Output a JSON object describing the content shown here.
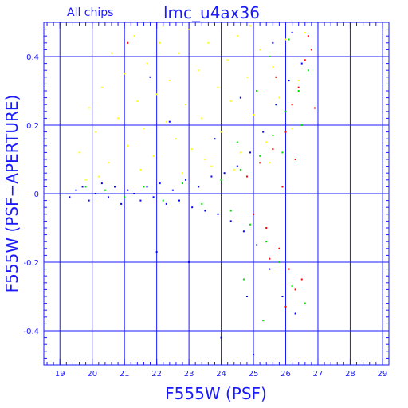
{
  "chart_data": {
    "type": "scatter",
    "title": "lmc_u4ax36",
    "subtitle": "All chips",
    "xlabel": "F555W (PSF)",
    "ylabel": "F555W (PSF−APERTURE)",
    "xlim": [
      18.5,
      29.2
    ],
    "ylim": [
      -0.5,
      0.5
    ],
    "xticks": [
      19,
      20,
      21,
      22,
      23,
      24,
      25,
      26,
      27,
      28,
      29
    ],
    "yticks": [
      -0.4,
      -0.2,
      0,
      0.2,
      0.4
    ],
    "xtick_labels": [
      "19",
      "20",
      "21",
      "22",
      "23",
      "24",
      "25",
      "26",
      "27",
      "28",
      "29"
    ],
    "ytick_labels": [
      "-0.4",
      "-0.2",
      "0",
      "0.2",
      "0.4"
    ],
    "grid": true,
    "series": [
      {
        "color": "#ffff00",
        "points": [
          [
            19.6,
            0.12
          ],
          [
            19.9,
            0.25
          ],
          [
            20.1,
            0.18
          ],
          [
            20.3,
            0.31
          ],
          [
            20.5,
            0.09
          ],
          [
            20.6,
            0.41
          ],
          [
            20.8,
            0.22
          ],
          [
            21.0,
            0.35
          ],
          [
            21.1,
            0.14
          ],
          [
            21.3,
            0.46
          ],
          [
            21.4,
            0.27
          ],
          [
            21.6,
            0.19
          ],
          [
            21.7,
            0.38
          ],
          [
            21.9,
            0.11
          ],
          [
            22.0,
            0.29
          ],
          [
            22.1,
            0.44
          ],
          [
            22.3,
            0.21
          ],
          [
            22.4,
            0.33
          ],
          [
            22.6,
            0.16
          ],
          [
            22.7,
            0.41
          ],
          [
            22.9,
            0.26
          ],
          [
            23.0,
            0.48
          ],
          [
            23.1,
            0.13
          ],
          [
            23.3,
            0.36
          ],
          [
            23.4,
            0.22
          ],
          [
            23.6,
            0.44
          ],
          [
            23.7,
            0.08
          ],
          [
            23.9,
            0.31
          ],
          [
            24.0,
            0.18
          ],
          [
            24.2,
            0.39
          ],
          [
            24.3,
            0.27
          ],
          [
            24.5,
            0.46
          ],
          [
            24.6,
            0.12
          ],
          [
            24.8,
            0.34
          ],
          [
            25.0,
            0.23
          ],
          [
            25.2,
            0.42
          ],
          [
            25.4,
            0.15
          ],
          [
            25.6,
            0.37
          ],
          [
            25.8,
            0.28
          ],
          [
            26.0,
            0.45
          ],
          [
            26.2,
            0.19
          ],
          [
            26.4,
            0.33
          ],
          [
            20.2,
            0.05
          ],
          [
            21.5,
            0.07
          ],
          [
            22.8,
            0.06
          ],
          [
            23.5,
            0.1
          ],
          [
            24.4,
            0.07
          ],
          [
            25.5,
            0.09
          ],
          [
            19.8,
            0.04
          ],
          [
            22.2,
            0.49
          ],
          [
            24.9,
            0.49
          ],
          [
            26.6,
            0.47
          ]
        ]
      },
      {
        "color": "#0000ff",
        "points": [
          [
            19.3,
            -0.01
          ],
          [
            19.5,
            0.01
          ],
          [
            19.7,
            0.02
          ],
          [
            19.9,
            -0.02
          ],
          [
            20.1,
            0.0
          ],
          [
            20.3,
            0.03
          ],
          [
            20.5,
            -0.01
          ],
          [
            20.7,
            0.02
          ],
          [
            20.9,
            -0.03
          ],
          [
            21.1,
            0.01
          ],
          [
            21.3,
            0.0
          ],
          [
            21.5,
            -0.02
          ],
          [
            21.7,
            0.02
          ],
          [
            21.9,
            -0.01
          ],
          [
            22.1,
            0.03
          ],
          [
            22.3,
            -0.03
          ],
          [
            22.5,
            0.01
          ],
          [
            22.7,
            -0.02
          ],
          [
            22.9,
            0.04
          ],
          [
            23.1,
            -0.04
          ],
          [
            23.3,
            0.02
          ],
          [
            23.5,
            -0.05
          ],
          [
            23.7,
            0.05
          ],
          [
            23.9,
            -0.06
          ],
          [
            24.1,
            0.06
          ],
          [
            24.3,
            -0.08
          ],
          [
            24.5,
            0.08
          ],
          [
            24.7,
            -0.11
          ],
          [
            24.9,
            0.12
          ],
          [
            25.1,
            -0.15
          ],
          [
            25.3,
            0.18
          ],
          [
            25.5,
            -0.22
          ],
          [
            25.7,
            0.26
          ],
          [
            25.9,
            -0.3
          ],
          [
            26.1,
            0.33
          ],
          [
            26.3,
            -0.35
          ],
          [
            26.5,
            0.38
          ],
          [
            24.0,
            -0.42
          ],
          [
            25.0,
            -0.47
          ],
          [
            25.6,
            0.44
          ],
          [
            26.2,
            0.47
          ],
          [
            22.4,
            0.21
          ],
          [
            21.8,
            0.34
          ],
          [
            23.8,
            0.16
          ],
          [
            24.6,
            0.28
          ],
          [
            23.0,
            -0.2
          ],
          [
            22.0,
            -0.17
          ],
          [
            24.8,
            -0.3
          ]
        ]
      },
      {
        "color": "#00dd00",
        "points": [
          [
            19.8,
            0.02
          ],
          [
            20.4,
            0.01
          ],
          [
            21.0,
            -0.01
          ],
          [
            21.6,
            0.02
          ],
          [
            22.2,
            -0.02
          ],
          [
            22.8,
            0.03
          ],
          [
            23.4,
            -0.03
          ],
          [
            24.0,
            0.04
          ],
          [
            24.3,
            -0.05
          ],
          [
            24.6,
            0.07
          ],
          [
            24.9,
            -0.09
          ],
          [
            25.2,
            0.11
          ],
          [
            25.4,
            -0.14
          ],
          [
            25.6,
            0.17
          ],
          [
            25.8,
            -0.2
          ],
          [
            26.0,
            0.24
          ],
          [
            26.2,
            -0.27
          ],
          [
            26.4,
            0.3
          ],
          [
            26.6,
            -0.32
          ],
          [
            26.7,
            0.36
          ],
          [
            25.5,
            0.4
          ],
          [
            26.1,
            0.45
          ],
          [
            24.7,
            -0.25
          ],
          [
            25.3,
            -0.37
          ],
          [
            26.5,
            0.2
          ],
          [
            25.9,
            0.12
          ],
          [
            24.5,
            0.15
          ],
          [
            25.1,
            0.3
          ]
        ]
      },
      {
        "color": "#ff0000",
        "points": [
          [
            24.8,
            0.05
          ],
          [
            25.0,
            -0.06
          ],
          [
            25.2,
            0.09
          ],
          [
            25.4,
            -0.1
          ],
          [
            25.6,
            0.13
          ],
          [
            25.8,
            -0.16
          ],
          [
            26.0,
            0.18
          ],
          [
            26.1,
            -0.22
          ],
          [
            26.2,
            0.26
          ],
          [
            26.3,
            -0.28
          ],
          [
            26.4,
            0.31
          ],
          [
            26.5,
            -0.25
          ],
          [
            26.6,
            0.39
          ],
          [
            26.7,
            0.46
          ],
          [
            26.8,
            0.42
          ],
          [
            25.7,
            0.34
          ],
          [
            26.0,
            -0.33
          ],
          [
            25.5,
            -0.19
          ],
          [
            21.1,
            0.44
          ],
          [
            26.9,
            0.25
          ],
          [
            25.9,
            0.02
          ],
          [
            26.3,
            0.1
          ]
        ]
      }
    ]
  }
}
